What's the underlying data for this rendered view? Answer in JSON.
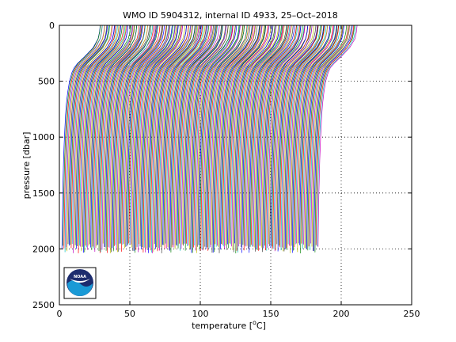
{
  "chart_data": {
    "type": "line",
    "title": "WMO ID 5904312, internal ID 4933, 25–Oct–2018",
    "xlabel_prefix": "temperature [",
    "xlabel_unit_sup": "o",
    "xlabel_suffix": "C]",
    "ylabel": "pressure [dbar]",
    "xlim": [
      0,
      250
    ],
    "ylim": [
      0,
      2500
    ],
    "y_reversed": true,
    "xticks": [
      0,
      50,
      100,
      150,
      200,
      250
    ],
    "yticks": [
      0,
      500,
      1000,
      1500,
      2000,
      2500
    ],
    "grid": "dotted",
    "profile_count": 250,
    "profile_offset_step": 0.73,
    "profile_first_offset": 0,
    "profile_template": {
      "pressure": [
        0,
        60,
        120,
        200,
        280,
        340,
        380,
        420,
        500,
        600,
        700,
        800,
        1000,
        1200,
        1500,
        1800,
        2000
      ],
      "temperature": [
        29,
        28.5,
        27.5,
        24,
        18,
        13,
        10.5,
        9,
        7.2,
        5.9,
        5.0,
        4.4,
        3.6,
        3.0,
        2.4,
        2.0,
        1.8
      ]
    },
    "series_colors": [
      "#0000ff",
      "#008000",
      "#ff0000",
      "#00bfbf",
      "#bf00bf",
      "#bfbf00",
      "#404040"
    ]
  },
  "logo": {
    "text": "NOAA",
    "colors": {
      "navy": "#1d2c6e",
      "sky": "#1a9ad6",
      "white": "#ffffff"
    }
  }
}
